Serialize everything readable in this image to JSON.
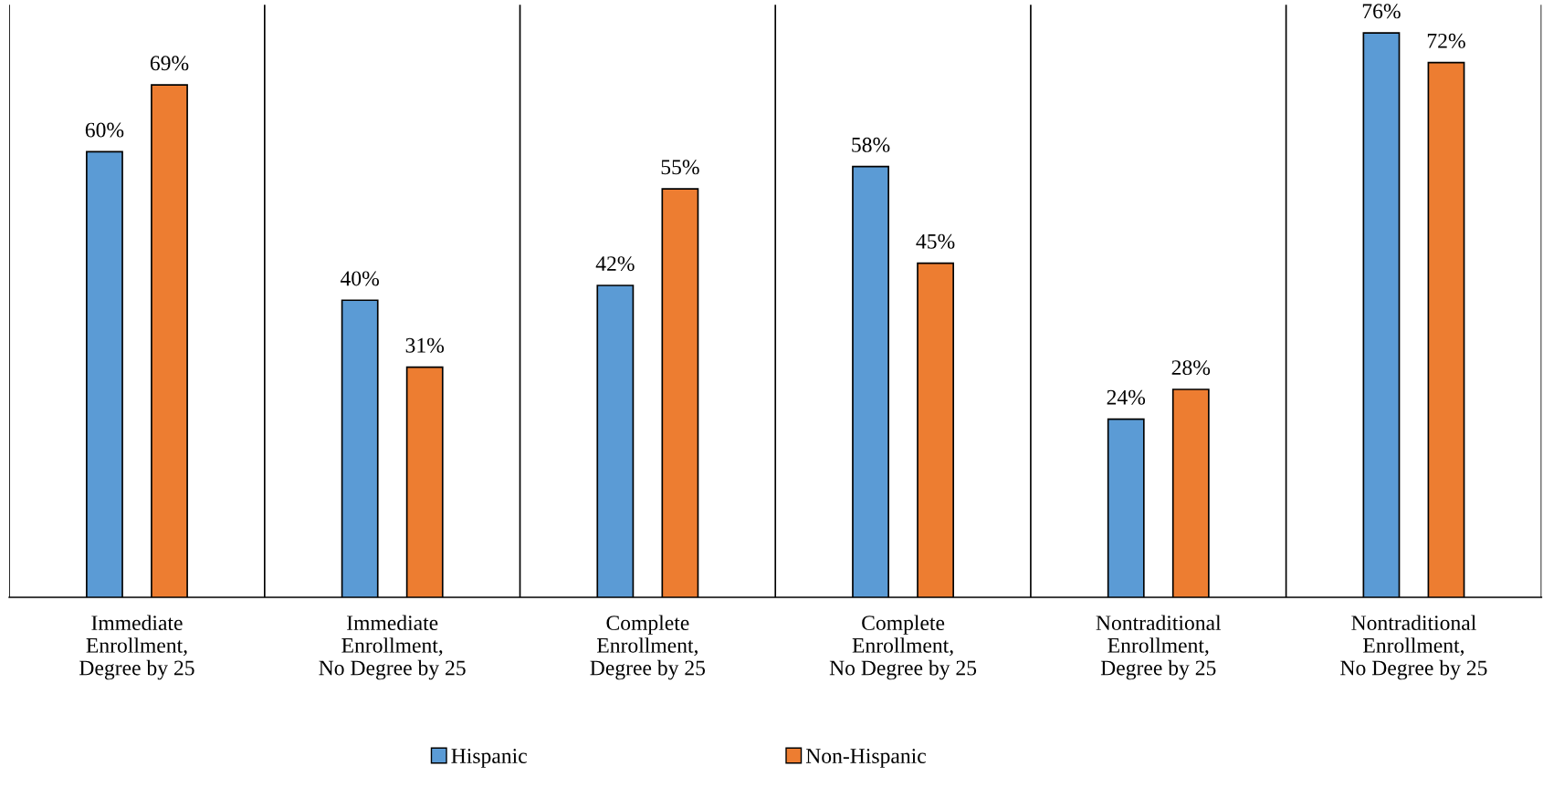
{
  "chart_data": {
    "type": "bar",
    "categories": [
      "Immediate\nEnrollment,\nDegree by 25",
      "Immediate\nEnrollment,\nNo Degree by 25",
      "Complete\nEnrollment,\nDegree by 25",
      "Complete\nEnrollment,\nNo Degree by 25",
      "Nontraditional\nEnrollment,\nDegree by 25",
      "Nontraditional\nEnrollment,\nNo Degree by 25"
    ],
    "series": [
      {
        "name": "Hispanic",
        "color": "#5b9bd5",
        "values": [
          60,
          40,
          42,
          58,
          24,
          76
        ],
        "value_labels": [
          "60%",
          "40%",
          "42%",
          "58%",
          "24%",
          "76%"
        ]
      },
      {
        "name": "Non-Hispanic",
        "color": "#ed7d31",
        "values": [
          69,
          31,
          55,
          45,
          28,
          72
        ],
        "value_labels": [
          "69%",
          "31%",
          "55%",
          "45%",
          "28%",
          "72%"
        ]
      }
    ],
    "tick_labels": "x",
    "grid": "x",
    "legend": "bottom"
  }
}
